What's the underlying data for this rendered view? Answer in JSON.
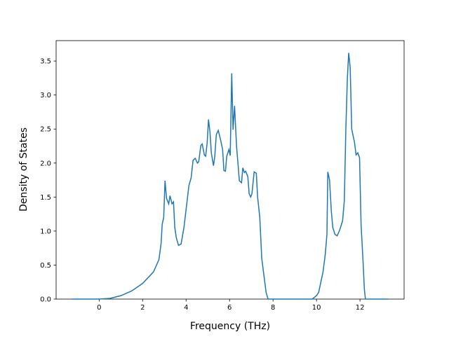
{
  "chart_data": {
    "type": "line",
    "xlabel": "Frequency (THz)",
    "ylabel": "Density of States",
    "xlim": [
      -1.98,
      14.03
    ],
    "ylim": [
      0,
      3.8
    ],
    "xticks": [
      0,
      2,
      4,
      6,
      8,
      10,
      12
    ],
    "yticks": [
      {
        "value": 0,
        "label": "0.0"
      },
      0.5,
      {
        "value": 1,
        "label": "1.0"
      },
      1.5,
      {
        "value": 2,
        "label": "2.0"
      },
      2.5,
      {
        "value": 3,
        "label": "3.0"
      },
      3.5
    ],
    "series": [
      {
        "color": "#1f77b4",
        "x": [
          -1.26,
          0,
          0.5,
          1,
          1.5,
          2,
          2.5,
          2.75,
          2.85,
          2.9,
          2.97,
          3.03,
          3.1,
          3.2,
          3.26,
          3.35,
          3.42,
          3.48,
          3.55,
          3.65,
          3.77,
          3.9,
          4.03,
          4.13,
          4.23,
          4.32,
          4.42,
          4.52,
          4.58,
          4.68,
          4.74,
          4.84,
          4.9,
          4.97,
          5.03,
          5.1,
          5.16,
          5.26,
          5.32,
          5.39,
          5.48,
          5.58,
          5.68,
          5.74,
          5.81,
          5.87,
          5.97,
          6.03,
          6.1,
          6.16,
          6.23,
          6.32,
          6.39,
          6.45,
          6.55,
          6.61,
          6.68,
          6.74,
          6.84,
          6.9,
          6.97,
          7.03,
          7.13,
          7.23,
          7.29,
          7.39,
          7.48,
          7.58,
          7.68,
          7.77,
          9.8,
          10.0,
          10.1,
          10.3,
          10.4,
          10.48,
          10.52,
          10.6,
          10.68,
          10.75,
          10.85,
          10.95,
          11.05,
          11.2,
          11.28,
          11.35,
          11.42,
          11.48,
          11.55,
          11.62,
          11.75,
          11.82,
          11.9,
          11.98,
          12.05,
          12.15,
          12.2,
          12.25,
          13.3
        ],
        "values": [
          0,
          0,
          0.01,
          0.05,
          0.12,
          0.23,
          0.4,
          0.58,
          0.82,
          1.1,
          1.2,
          1.74,
          1.48,
          1.4,
          1.52,
          1.4,
          1.43,
          1.05,
          0.9,
          0.79,
          0.81,
          1.05,
          1.4,
          1.67,
          1.78,
          2.04,
          2.07,
          2.0,
          2.02,
          2.26,
          2.28,
          2.12,
          2.1,
          2.3,
          2.64,
          2.45,
          2.15,
          1.96,
          2.1,
          2.42,
          2.48,
          2.35,
          2.2,
          1.89,
          1.88,
          2.1,
          2.2,
          2.11,
          3.32,
          2.49,
          2.84,
          2.25,
          1.98,
          1.74,
          1.71,
          1.93,
          1.86,
          1.88,
          1.8,
          1.55,
          1.5,
          1.55,
          1.87,
          1.85,
          1.5,
          1.2,
          0.6,
          0.35,
          0.1,
          0,
          0,
          0.05,
          0.1,
          0.4,
          0.65,
          0.95,
          1.87,
          1.75,
          1.3,
          1.05,
          0.95,
          0.93,
          1.0,
          1.15,
          1.45,
          2.5,
          3.25,
          3.62,
          3.4,
          2.5,
          2.3,
          2.12,
          2.15,
          2.08,
          1.1,
          0.5,
          0.15,
          0,
          0
        ]
      }
    ]
  }
}
